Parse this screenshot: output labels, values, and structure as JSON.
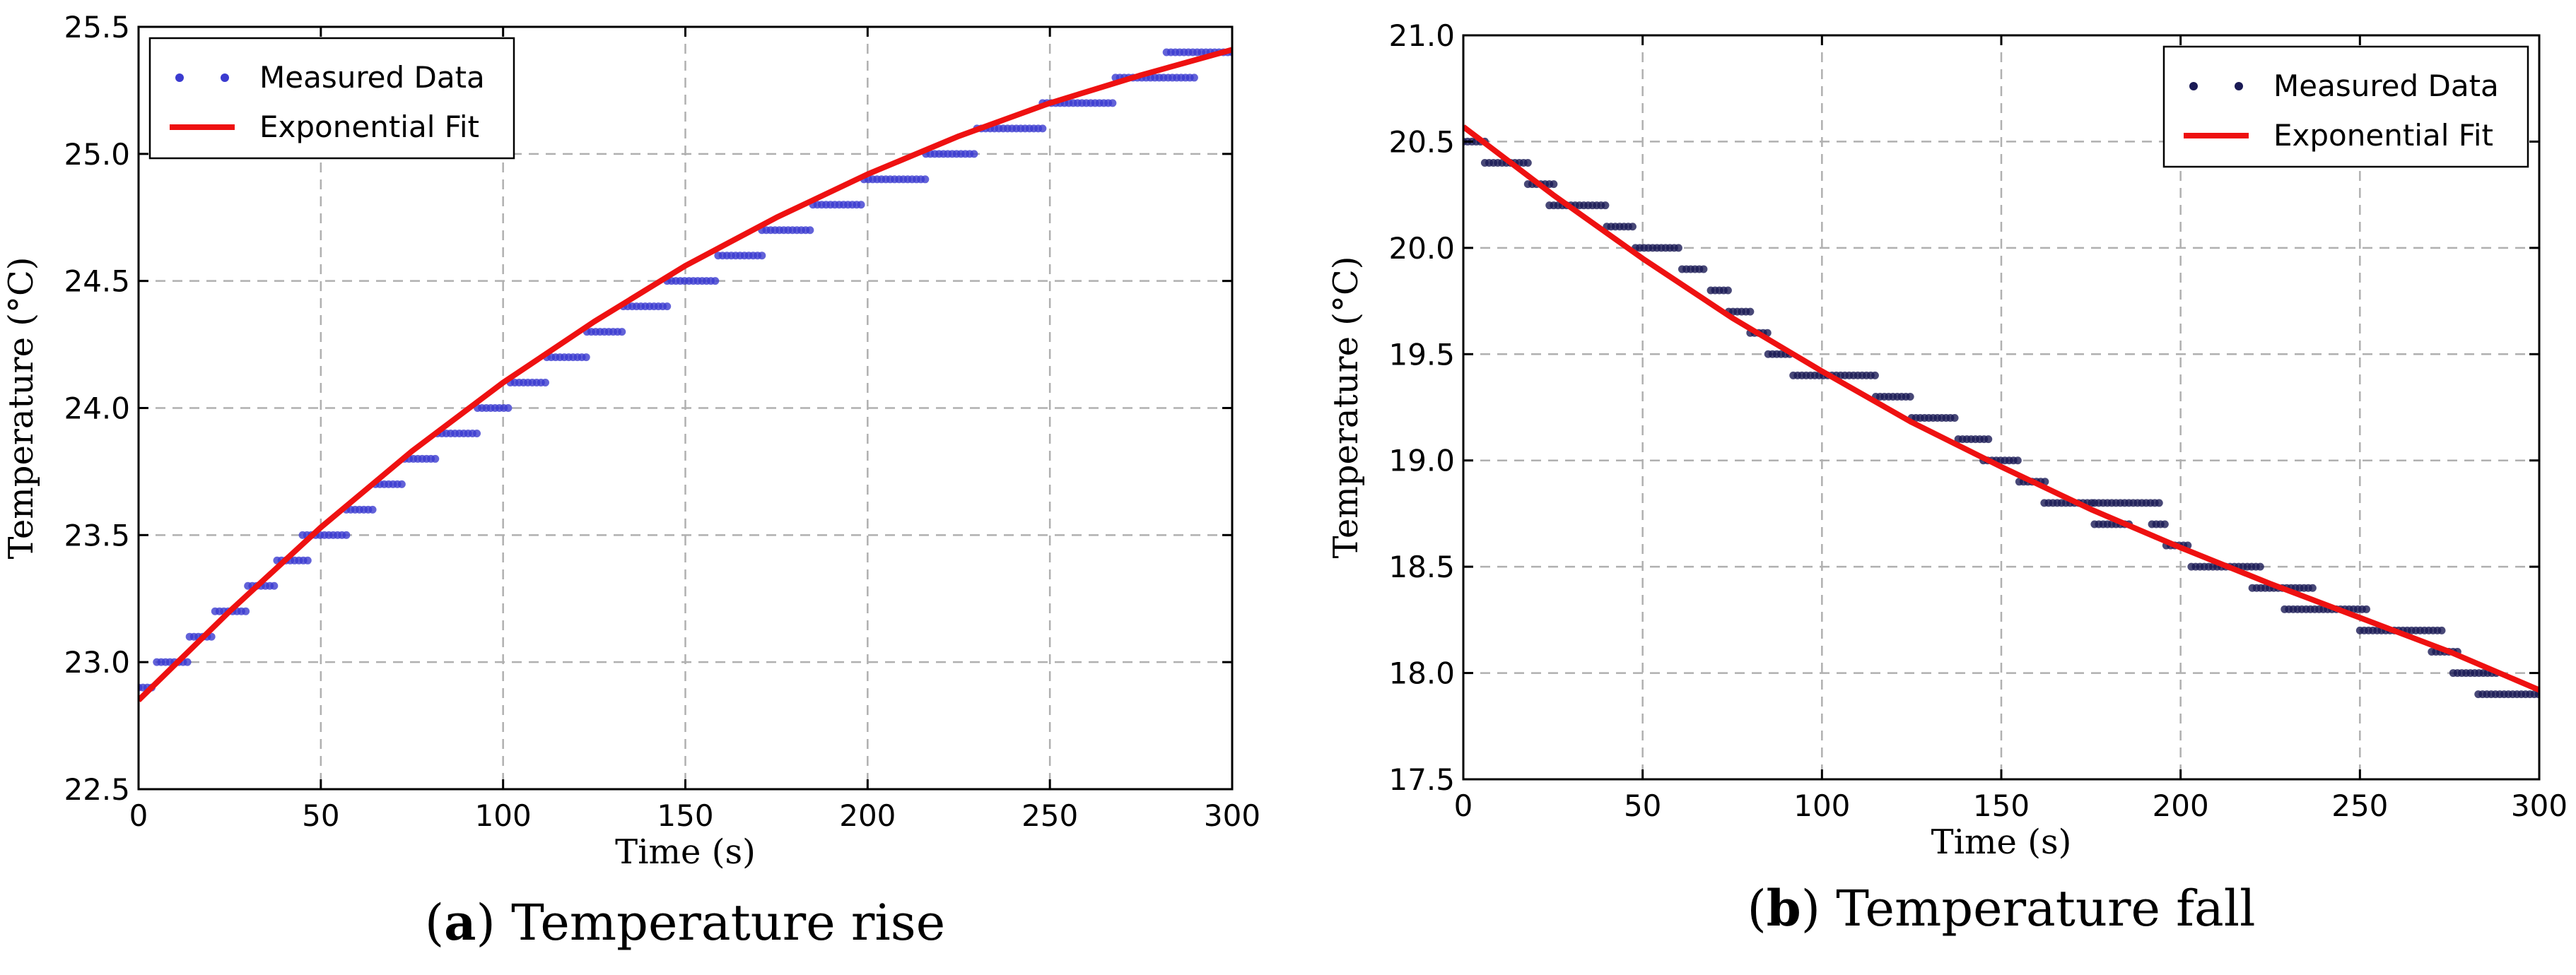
{
  "chart_data": [
    {
      "type": "scatter",
      "caption_letter": "a",
      "caption_text": " Temperature rise",
      "xlabel": "Time (s)",
      "ylabel": "Temperature (°C)",
      "xlim": [
        0,
        300
      ],
      "ylim": [
        22.5,
        25.5
      ],
      "xticks": [
        0,
        50,
        100,
        150,
        200,
        250,
        300
      ],
      "yticks": [
        22.5,
        23.0,
        23.5,
        24.0,
        24.5,
        25.0,
        25.5
      ],
      "ytick_labels": [
        "22.5",
        "23.0",
        "23.5",
        "24.0",
        "24.5",
        "25.0",
        "25.5"
      ],
      "grid": true,
      "legend_position": "top-left",
      "series": [
        {
          "name": "Measured Data",
          "kind": "markers",
          "color": "#3b3bd0",
          "steps": [
            {
              "x0": 0,
              "x1": 4,
              "y": 22.9
            },
            {
              "x0": 5,
              "x1": 14,
              "y": 23.0
            },
            {
              "x0": 14,
              "x1": 21,
              "y": 23.1
            },
            {
              "x0": 21,
              "x1": 30,
              "y": 23.2
            },
            {
              "x0": 30,
              "x1": 38,
              "y": 23.3
            },
            {
              "x0": 38,
              "x1": 47,
              "y": 23.4
            },
            {
              "x0": 45,
              "x1": 57,
              "y": 23.5
            },
            {
              "x0": 57,
              "x1": 65,
              "y": 23.6
            },
            {
              "x0": 65,
              "x1": 73,
              "y": 23.7
            },
            {
              "x0": 73,
              "x1": 82,
              "y": 23.8
            },
            {
              "x0": 82,
              "x1": 93,
              "y": 23.9
            },
            {
              "x0": 93,
              "x1": 102,
              "y": 24.0
            },
            {
              "x0": 102,
              "x1": 112,
              "y": 24.1
            },
            {
              "x0": 112,
              "x1": 123,
              "y": 24.2
            },
            {
              "x0": 123,
              "x1": 133,
              "y": 24.3
            },
            {
              "x0": 133,
              "x1": 145,
              "y": 24.4
            },
            {
              "x0": 145,
              "x1": 159,
              "y": 24.5
            },
            {
              "x0": 159,
              "x1": 171,
              "y": 24.6
            },
            {
              "x0": 171,
              "x1": 185,
              "y": 24.7
            },
            {
              "x0": 185,
              "x1": 199,
              "y": 24.8
            },
            {
              "x0": 199,
              "x1": 216,
              "y": 24.9
            },
            {
              "x0": 216,
              "x1": 230,
              "y": 25.0
            },
            {
              "x0": 230,
              "x1": 248,
              "y": 25.1
            },
            {
              "x0": 248,
              "x1": 268,
              "y": 25.2
            },
            {
              "x0": 268,
              "x1": 290,
              "y": 25.3
            },
            {
              "x0": 282,
              "x1": 300,
              "y": 25.4
            }
          ]
        },
        {
          "name": "Exponential Fit",
          "kind": "line",
          "color": "#ee1111",
          "x": [
            0,
            25,
            50,
            75,
            100,
            125,
            150,
            175,
            200,
            225,
            250,
            275,
            300
          ],
          "y": [
            22.85,
            23.2,
            23.53,
            23.83,
            24.1,
            24.34,
            24.56,
            24.75,
            24.92,
            25.07,
            25.2,
            25.31,
            25.41
          ]
        }
      ]
    },
    {
      "type": "scatter",
      "caption_letter": "b",
      "caption_text": " Temperature fall",
      "xlabel": "Time (s)",
      "ylabel": "Temperature (°C)",
      "xlim": [
        0,
        300
      ],
      "ylim": [
        17.5,
        21.0
      ],
      "xticks": [
        0,
        50,
        100,
        150,
        200,
        250,
        300
      ],
      "yticks": [
        17.5,
        18.0,
        18.5,
        19.0,
        19.5,
        20.0,
        20.5,
        21.0
      ],
      "ytick_labels": [
        "17.5",
        "18.0",
        "18.5",
        "19.0",
        "19.5",
        "20.0",
        "20.5",
        "21.0"
      ],
      "grid": true,
      "legend_position": "top-right",
      "series": [
        {
          "name": "Measured Data",
          "kind": "markers",
          "color": "#1a1a55",
          "steps": [
            {
              "x0": 0,
              "x1": 6,
              "y": 20.5
            },
            {
              "x0": 6,
              "x1": 18,
              "y": 20.4
            },
            {
              "x0": 18,
              "x1": 26,
              "y": 20.3
            },
            {
              "x0": 24,
              "x1": 40,
              "y": 20.2
            },
            {
              "x0": 40,
              "x1": 48,
              "y": 20.1
            },
            {
              "x0": 48,
              "x1": 61,
              "y": 20.0
            },
            {
              "x0": 61,
              "x1": 68,
              "y": 19.9
            },
            {
              "x0": 69,
              "x1": 74,
              "y": 19.8
            },
            {
              "x0": 74,
              "x1": 80,
              "y": 19.7
            },
            {
              "x0": 80,
              "x1": 85,
              "y": 19.6
            },
            {
              "x0": 85,
              "x1": 92,
              "y": 19.5
            },
            {
              "x0": 92,
              "x1": 115,
              "y": 19.4
            },
            {
              "x0": 115,
              "x1": 125,
              "y": 19.3
            },
            {
              "x0": 125,
              "x1": 138,
              "y": 19.2
            },
            {
              "x0": 138,
              "x1": 147,
              "y": 19.1
            },
            {
              "x0": 145,
              "x1": 155,
              "y": 19.0
            },
            {
              "x0": 155,
              "x1": 163,
              "y": 18.9
            },
            {
              "x0": 162,
              "x1": 176,
              "y": 18.8
            },
            {
              "x0": 176,
              "x1": 186,
              "y": 18.7
            },
            {
              "x0": 176,
              "x1": 194,
              "y": 18.8
            },
            {
              "x0": 192,
              "x1": 196,
              "y": 18.7
            },
            {
              "x0": 196,
              "x1": 203,
              "y": 18.6
            },
            {
              "x0": 203,
              "x1": 223,
              "y": 18.5
            },
            {
              "x0": 220,
              "x1": 237,
              "y": 18.4
            },
            {
              "x0": 229,
              "x1": 252,
              "y": 18.3
            },
            {
              "x0": 250,
              "x1": 273,
              "y": 18.2
            },
            {
              "x0": 270,
              "x1": 278,
              "y": 18.1
            },
            {
              "x0": 276,
              "x1": 288,
              "y": 18.0
            },
            {
              "x0": 283,
              "x1": 300,
              "y": 17.9
            }
          ]
        },
        {
          "name": "Exponential Fit",
          "kind": "line",
          "color": "#ee1111",
          "x": [
            0,
            25,
            50,
            75,
            100,
            125,
            150,
            175,
            200,
            225,
            250,
            275,
            300
          ],
          "y": [
            20.57,
            20.25,
            19.95,
            19.67,
            19.42,
            19.18,
            18.97,
            18.77,
            18.59,
            18.42,
            18.26,
            18.1,
            17.92
          ]
        }
      ]
    }
  ]
}
